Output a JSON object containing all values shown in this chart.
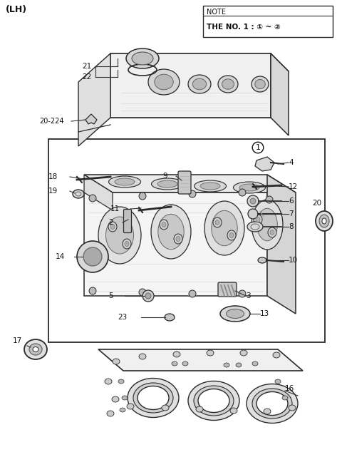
{
  "title": "(LH)",
  "note_line1": "NOTE",
  "note_line2": "THE NO. 1 : ① ~ ②",
  "background_color": "#ffffff",
  "line_color": "#2a2a2a",
  "light_gray": "#e8e8e8",
  "mid_gray": "#c8c8c8",
  "dark_gray": "#888888",
  "fig_width": 4.8,
  "fig_height": 6.55,
  "dpi": 100
}
